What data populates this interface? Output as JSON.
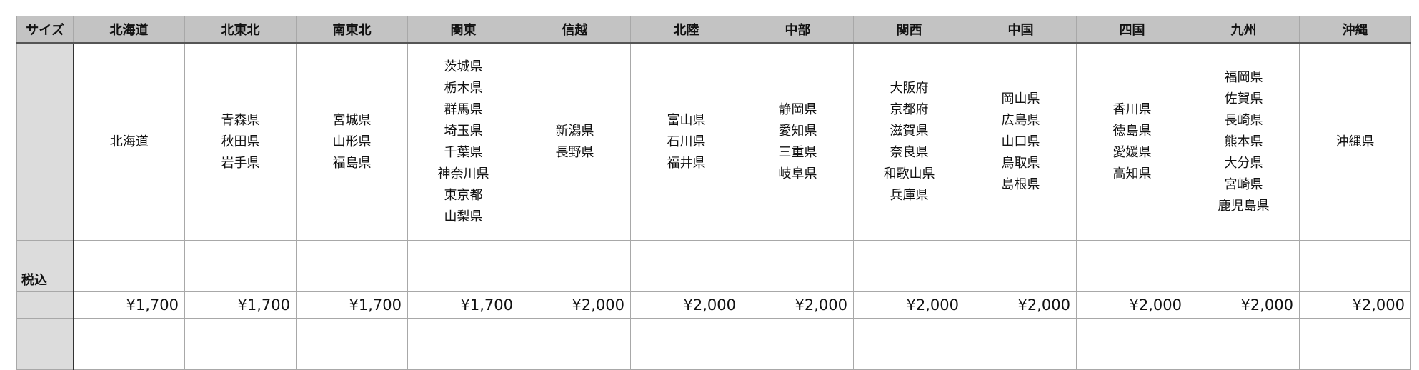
{
  "table": {
    "corner_header": "サイズ",
    "regions": [
      {
        "name": "北海道",
        "prefectures": [
          "北海道"
        ],
        "price": "¥1,700"
      },
      {
        "name": "北東北",
        "prefectures": [
          "青森県",
          "秋田県",
          "岩手県"
        ],
        "price": "¥1,700"
      },
      {
        "name": "南東北",
        "prefectures": [
          "宮城県",
          "山形県",
          "福島県"
        ],
        "price": "¥1,700"
      },
      {
        "name": "関東",
        "prefectures": [
          "茨城県",
          "栃木県",
          "群馬県",
          "埼玉県",
          "千葉県",
          "神奈川県",
          "東京都",
          "山梨県"
        ],
        "price": "¥1,700"
      },
      {
        "name": "信越",
        "prefectures": [
          "新潟県",
          "長野県"
        ],
        "price": "¥2,000"
      },
      {
        "name": "北陸",
        "prefectures": [
          "富山県",
          "石川県",
          "福井県"
        ],
        "price": "¥2,000"
      },
      {
        "name": "中部",
        "prefectures": [
          "静岡県",
          "愛知県",
          "三重県",
          "岐阜県"
        ],
        "price": "¥2,000"
      },
      {
        "name": "関西",
        "prefectures": [
          "大阪府",
          "京都府",
          "滋賀県",
          "奈良県",
          "和歌山県",
          "兵庫県"
        ],
        "price": "¥2,000"
      },
      {
        "name": "中国",
        "prefectures": [
          "岡山県",
          "広島県",
          "山口県",
          "鳥取県",
          "島根県"
        ],
        "price": "¥2,000"
      },
      {
        "name": "四国",
        "prefectures": [
          "香川県",
          "徳島県",
          "愛媛県",
          "高知県"
        ],
        "price": "¥2,000"
      },
      {
        "name": "九州",
        "prefectures": [
          "福岡県",
          "佐賀県",
          "長崎県",
          "熊本県",
          "大分県",
          "宮崎県",
          "鹿児島県"
        ],
        "price": "¥2,000"
      },
      {
        "name": "沖縄",
        "prefectures": [
          "沖縄県"
        ],
        "price": "¥2,000"
      }
    ],
    "tax_label": "税込"
  },
  "colors": {
    "header_bg": "#c3c3c3",
    "side_bg": "#dcdcdc"
  }
}
